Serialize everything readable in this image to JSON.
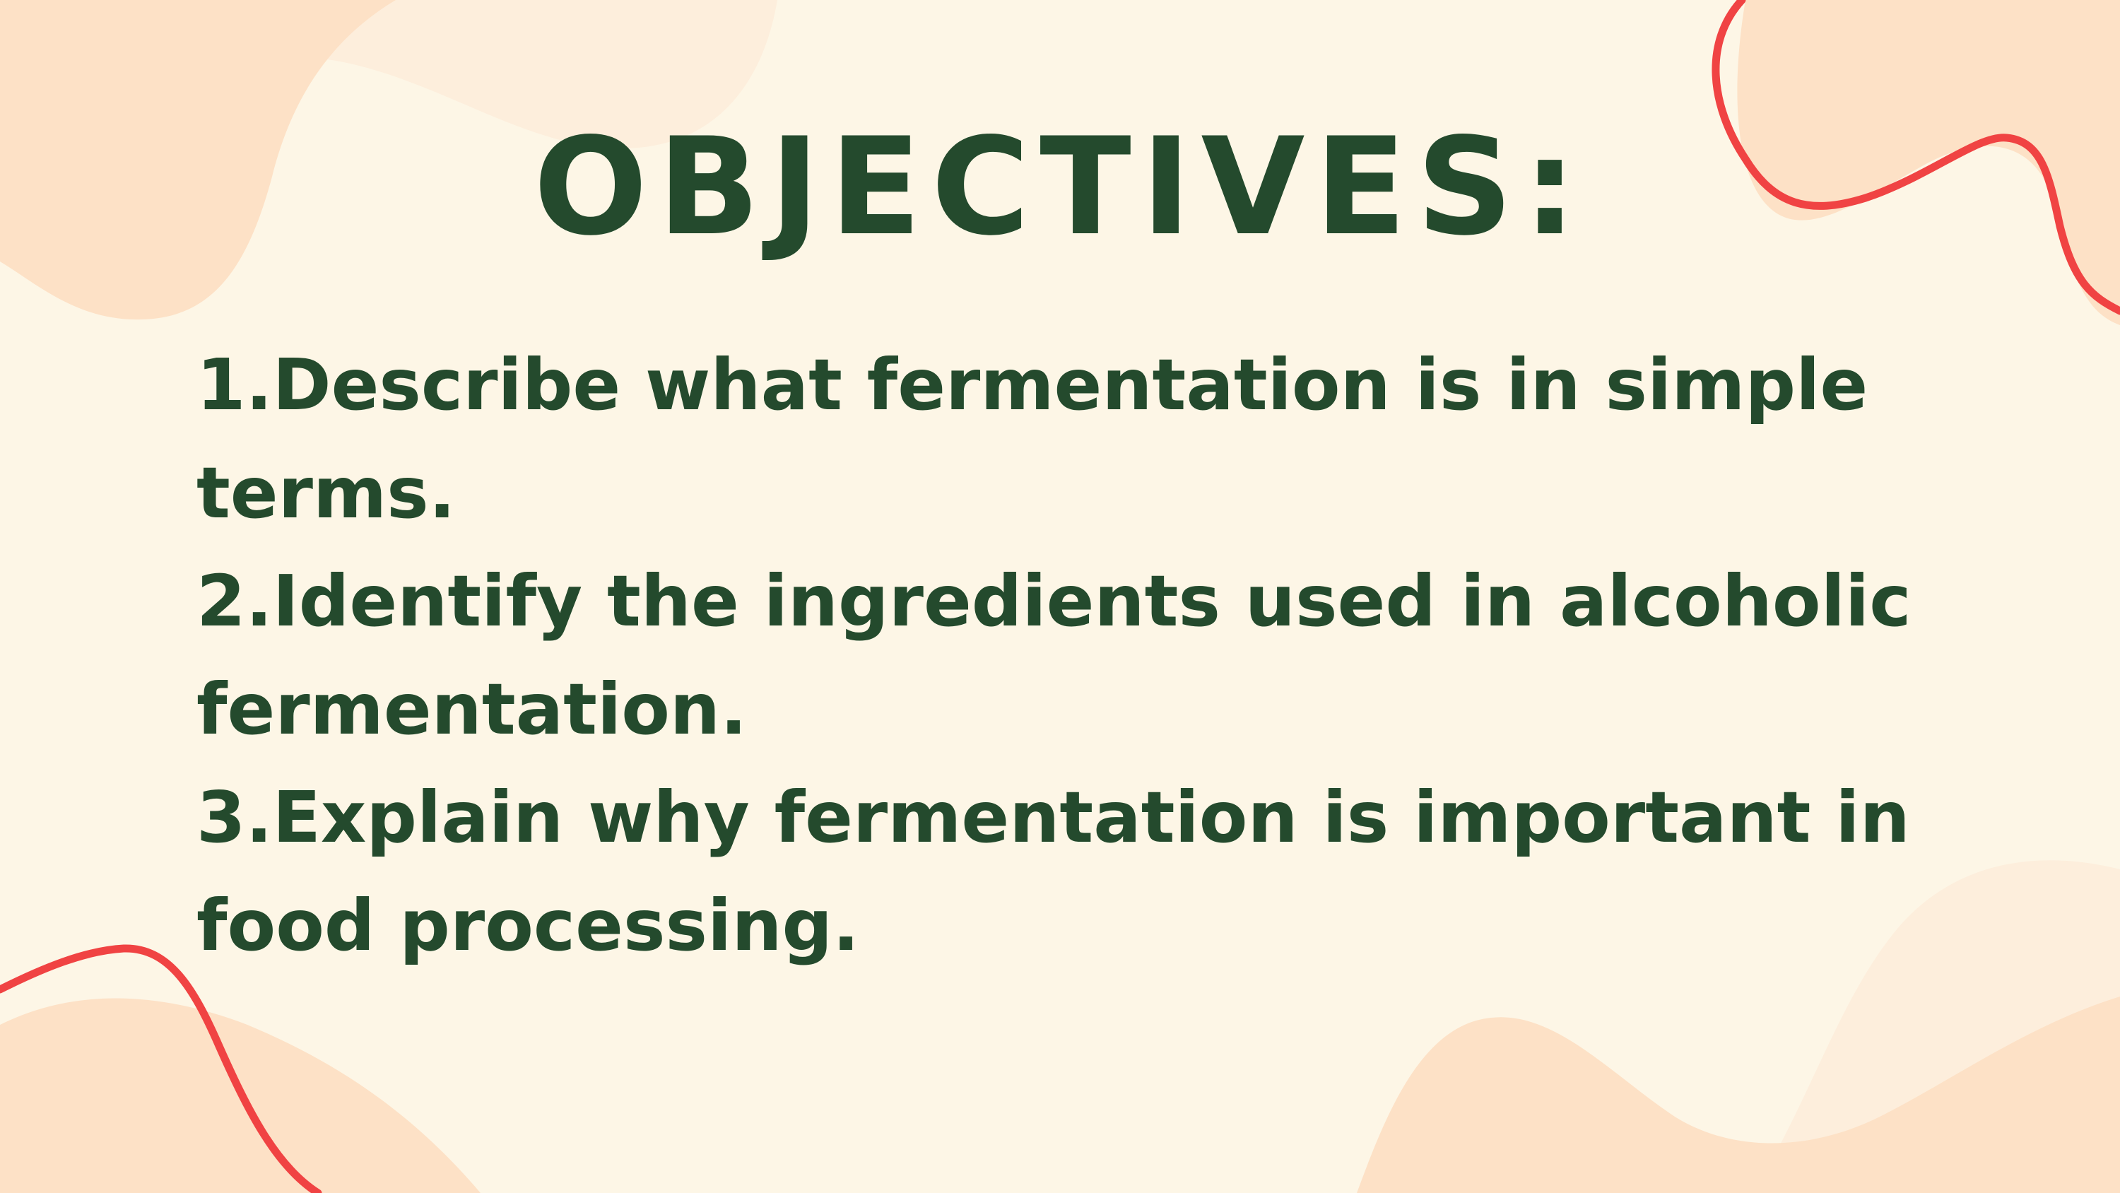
{
  "slide": {
    "title": "OBJECTIVES:",
    "objectives": [
      "1.Describe what fermentation is in simple terms.",
      "2.Identify the ingredients used in alcoholic fermentation.",
      "3.Explain why fermentation is important in food processing."
    ]
  },
  "colors": {
    "background": "#fdf6e6",
    "blob": "#fde1c6",
    "blob_light": "#fdeedc",
    "accent_line": "#f04343",
    "text": "#244a2d"
  }
}
